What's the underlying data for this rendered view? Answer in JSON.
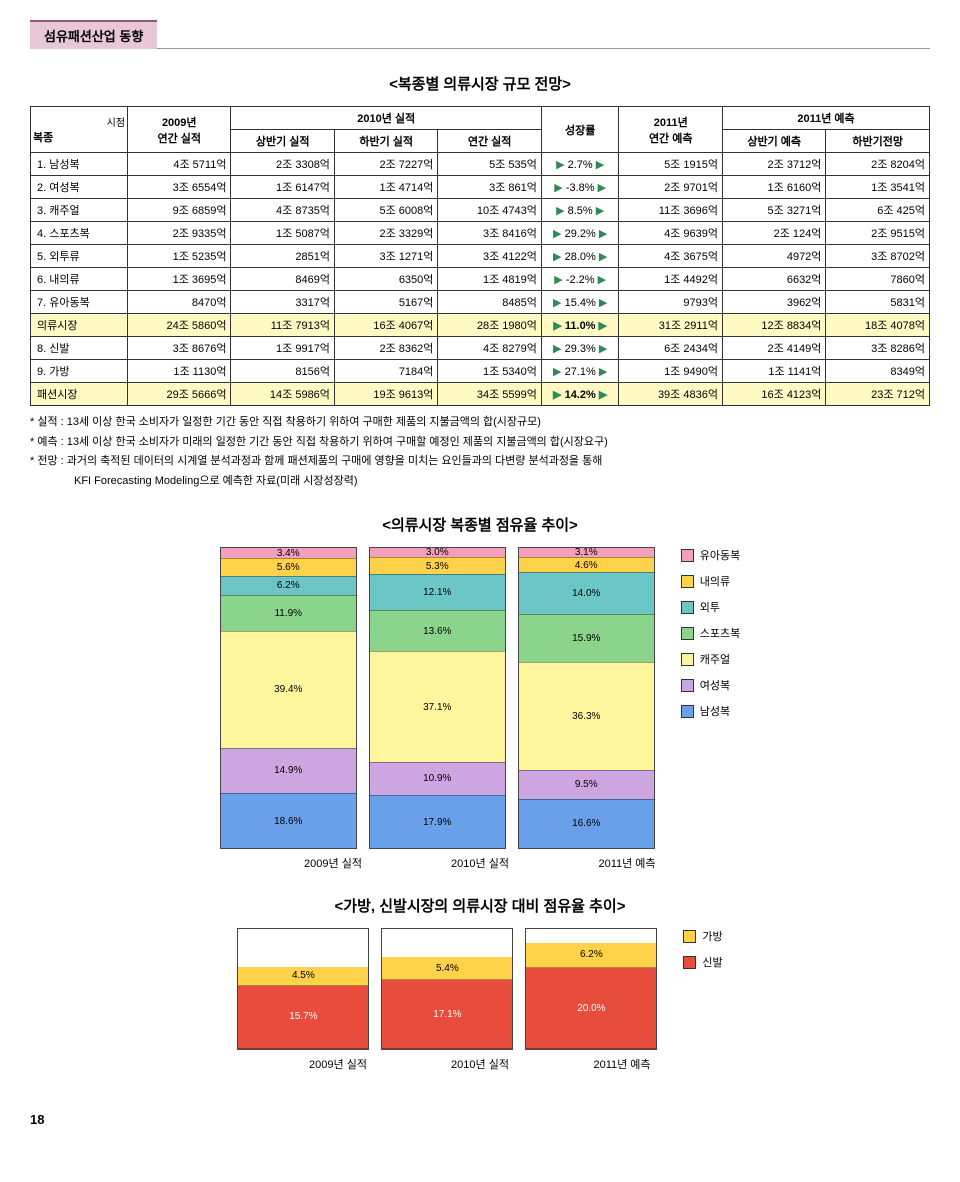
{
  "section_tag": "섬유패션산업 동향",
  "table1": {
    "title": "<복종별 의류시장 규모 전망>",
    "header": {
      "c1": "복종",
      "c1b": "시점",
      "c2": "2009년\n연간 실적",
      "c3_top": "2010년 실적",
      "c3a": "상반기 실적",
      "c3b": "하반기 실적",
      "c3c": "연간 실적",
      "c4": "성장률",
      "c5": "2011년\n연간 예측",
      "c6_top": "2011년 예측",
      "c6a": "상반기 예측",
      "c6b": "하반기전망"
    },
    "rows": [
      {
        "label": "1. 남성복",
        "v": [
          "4조 5711억",
          "2조 3308억",
          "2조 7227억",
          "5조 535억",
          "2.7%",
          "5조 1915억",
          "2조 3712억",
          "2조 8204억"
        ]
      },
      {
        "label": "2. 여성복",
        "v": [
          "3조 6554억",
          "1조 6147억",
          "1조 4714억",
          "3조 861억",
          "-3.8%",
          "2조 9701억",
          "1조 6160억",
          "1조 3541억"
        ]
      },
      {
        "label": "3. 캐주얼",
        "v": [
          "9조 6859억",
          "4조 8735억",
          "5조 6008억",
          "10조 4743억",
          "8.5%",
          "11조 3696억",
          "5조 3271억",
          "6조 425억"
        ]
      },
      {
        "label": "4. 스포츠복",
        "v": [
          "2조 9335억",
          "1조 5087억",
          "2조 3329억",
          "3조 8416억",
          "29.2%",
          "4조 9639억",
          "2조 124억",
          "2조 9515억"
        ]
      },
      {
        "label": "5. 외투류",
        "v": [
          "1조 5235억",
          "2851억",
          "3조 1271억",
          "3조 4122억",
          "28.0%",
          "4조 3675억",
          "4972억",
          "3조 8702억"
        ]
      },
      {
        "label": "6. 내의류",
        "v": [
          "1조 3695억",
          "8469억",
          "6350억",
          "1조 4819억",
          "-2.2%",
          "1조 4492억",
          "6632억",
          "7860억"
        ]
      },
      {
        "label": "7. 유아동복",
        "v": [
          "8470억",
          "3317억",
          "5167억",
          "8485억",
          "15.4%",
          "9793억",
          "3962억",
          "5831억"
        ]
      },
      {
        "label": "의류시장",
        "v": [
          "24조 5860억",
          "11조 7913억",
          "16조 4067억",
          "28조 1980억",
          "11.0%",
          "31조 2911억",
          "12조 8834억",
          "18조 4078억"
        ],
        "hl": true
      },
      {
        "label": "8. 신발",
        "v": [
          "3조 8676억",
          "1조 9917억",
          "2조 8362억",
          "4조 8279억",
          "29.3%",
          "6조 2434억",
          "2조 4149억",
          "3조 8286억"
        ]
      },
      {
        "label": "9. 가방",
        "v": [
          "1조 1130억",
          "8156억",
          "7184억",
          "1조 5340억",
          "27.1%",
          "1조 9490억",
          "1조 1141억",
          "8349억"
        ]
      },
      {
        "label": "패션시장",
        "v": [
          "29조 5666억",
          "14조 5986억",
          "19조 9613억",
          "34조 5599억",
          "14.2%",
          "39조 4836억",
          "16조 4123억",
          "23조 712억"
        ],
        "hl": true
      }
    ]
  },
  "footnotes": [
    "* 실적 : 13세 이상 한국 소비자가 일정한 기간 동안 직접 착용하기 위하여 구매한 제품의 지불금액의 합(시장규모)",
    "* 예측 : 13세 이상 한국 소비자가 미래의 일정한 기간 동안 직접 착용하기 위하여 구매할 예정인 제품의 지불금액의 합(시장요구)",
    "* 전망 : 과거의 축적된 데이터의 시계열 분석과정과 함께 패션제품의 구매에 영향을 미치는 요인들과의 다변량 분석과정을 통해",
    "　　　　KFI Forecasting Modeling으로 예측한 자료(미래 시장성장력)"
  ],
  "chart1": {
    "title": "<의류시장 복종별 점유율 추이>",
    "x_labels": [
      "2009년 실적",
      "2010년 실적",
      "2011년 예측"
    ],
    "series": [
      "유아동복",
      "내의류",
      "외투",
      "스포츠복",
      "캐주얼",
      "여성복",
      "남성복"
    ],
    "colors": [
      "#f59fbf",
      "#ffd24a",
      "#6cc6c6",
      "#8bd48b",
      "#fff59d",
      "#cda5e0",
      "#6aa0ea"
    ],
    "data": [
      [
        3.4,
        5.6,
        6.2,
        11.9,
        39.4,
        14.9,
        18.6
      ],
      [
        3.0,
        5.3,
        12.1,
        13.6,
        37.1,
        10.9,
        17.9
      ],
      [
        3.1,
        4.6,
        14.0,
        15.9,
        36.3,
        9.5,
        16.6
      ]
    ]
  },
  "chart2": {
    "title": "<가방, 신발시장의 의류시장 대비 점유율 추이>",
    "x_labels": [
      "2009년 실적",
      "2010년 실적",
      "2011년 예측"
    ],
    "series": [
      "가방",
      "신발"
    ],
    "colors": [
      "#ffd24a",
      "#e84c3d"
    ],
    "data": [
      [
        4.5,
        15.7
      ],
      [
        5.4,
        17.1
      ],
      [
        6.2,
        20.0
      ]
    ],
    "max": 30
  },
  "page_num": "18"
}
